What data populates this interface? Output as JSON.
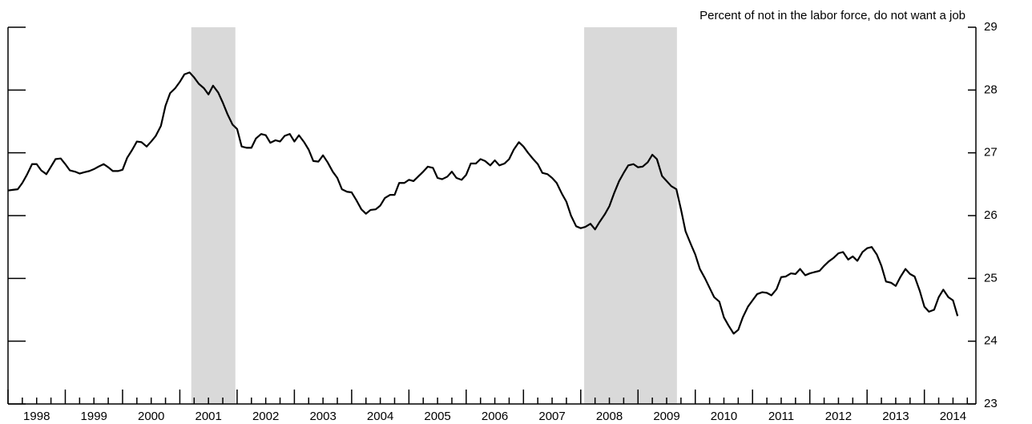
{
  "chart_data": {
    "type": "line",
    "title": "Percent of not in the labor force, do not want a job",
    "x": [
      1998,
      1998.08,
      1998.17,
      1998.25,
      1998.33,
      1998.42,
      1998.5,
      1998.58,
      1998.67,
      1998.75,
      1998.83,
      1998.92,
      1999,
      1999.08,
      1999.17,
      1999.25,
      1999.33,
      1999.42,
      1999.5,
      1999.58,
      1999.67,
      1999.75,
      1999.83,
      1999.92,
      2000,
      2000.08,
      2000.17,
      2000.25,
      2000.33,
      2000.42,
      2000.5,
      2000.58,
      2000.67,
      2000.75,
      2000.83,
      2000.92,
      2001,
      2001.08,
      2001.17,
      2001.25,
      2001.33,
      2001.42,
      2001.5,
      2001.58,
      2001.67,
      2001.75,
      2001.83,
      2001.92,
      2002,
      2002.08,
      2002.17,
      2002.25,
      2002.33,
      2002.42,
      2002.5,
      2002.58,
      2002.67,
      2002.75,
      2002.83,
      2002.92,
      2003,
      2003.08,
      2003.17,
      2003.25,
      2003.33,
      2003.42,
      2003.5,
      2003.58,
      2003.67,
      2003.75,
      2003.83,
      2003.92,
      2004,
      2004.08,
      2004.17,
      2004.25,
      2004.33,
      2004.42,
      2004.5,
      2004.58,
      2004.67,
      2004.75,
      2004.83,
      2004.92,
      2005,
      2005.08,
      2005.17,
      2005.25,
      2005.33,
      2005.42,
      2005.5,
      2005.58,
      2005.67,
      2005.75,
      2005.83,
      2005.92,
      2006,
      2006.08,
      2006.17,
      2006.25,
      2006.33,
      2006.42,
      2006.5,
      2006.58,
      2006.67,
      2006.75,
      2006.83,
      2006.92,
      2007,
      2007.08,
      2007.17,
      2007.25,
      2007.33,
      2007.42,
      2007.5,
      2007.58,
      2007.67,
      2007.75,
      2007.83,
      2007.92,
      2008,
      2008.08,
      2008.17,
      2008.25,
      2008.33,
      2008.42,
      2008.5,
      2008.58,
      2008.67,
      2008.75,
      2008.83,
      2008.92,
      2009,
      2009.08,
      2009.17,
      2009.25,
      2009.33,
      2009.42,
      2009.5,
      2009.58,
      2009.67,
      2009.75,
      2009.83,
      2009.92,
      2010,
      2010.08,
      2010.17,
      2010.25,
      2010.33,
      2010.42,
      2010.5,
      2010.58,
      2010.67,
      2010.75,
      2010.83,
      2010.92,
      2011,
      2011.08,
      2011.17,
      2011.25,
      2011.33,
      2011.42,
      2011.5,
      2011.58,
      2011.67,
      2011.75,
      2011.83,
      2011.92,
      2012,
      2012.08,
      2012.17,
      2012.25,
      2012.33,
      2012.42,
      2012.5,
      2012.58,
      2012.67,
      2012.75,
      2012.83,
      2012.92,
      2013,
      2013.08,
      2013.17,
      2013.25,
      2013.33,
      2013.42,
      2013.5,
      2013.58,
      2013.67,
      2013.75,
      2013.83,
      2013.92,
      2014,
      2014.08,
      2014.17,
      2014.25,
      2014.33,
      2014.42,
      2014.5,
      2014.58
    ],
    "values": [
      26.4,
      26.41,
      26.42,
      26.52,
      26.65,
      26.82,
      26.82,
      26.72,
      26.66,
      26.78,
      26.9,
      26.91,
      26.82,
      26.72,
      26.7,
      26.67,
      26.69,
      26.71,
      26.74,
      26.78,
      26.82,
      26.77,
      26.71,
      26.71,
      26.73,
      26.92,
      27.05,
      27.18,
      27.17,
      27.1,
      27.18,
      27.27,
      27.43,
      27.75,
      27.95,
      28.03,
      28.13,
      28.25,
      28.28,
      28.2,
      28.1,
      28.03,
      27.93,
      28.07,
      27.96,
      27.8,
      27.62,
      27.45,
      27.38,
      27.1,
      27.08,
      27.08,
      27.23,
      27.3,
      27.28,
      27.16,
      27.2,
      27.18,
      27.27,
      27.3,
      27.18,
      27.28,
      27.17,
      27.05,
      26.87,
      26.86,
      26.96,
      26.85,
      26.7,
      26.6,
      26.42,
      26.38,
      26.37,
      26.25,
      26.1,
      26.03,
      26.09,
      26.1,
      26.16,
      26.28,
      26.33,
      26.33,
      26.52,
      26.52,
      26.57,
      26.55,
      26.63,
      26.7,
      26.78,
      26.76,
      26.6,
      26.58,
      26.62,
      26.7,
      26.6,
      26.57,
      26.65,
      26.83,
      26.83,
      26.9,
      26.87,
      26.8,
      26.88,
      26.8,
      26.83,
      26.9,
      27.05,
      27.17,
      27.1,
      27.0,
      26.9,
      26.82,
      26.68,
      26.66,
      26.6,
      26.52,
      26.35,
      26.22,
      26.0,
      25.83,
      25.8,
      25.82,
      25.87,
      25.78,
      25.9,
      26.02,
      26.15,
      26.35,
      26.55,
      26.68,
      26.8,
      26.82,
      26.77,
      26.78,
      26.85,
      26.97,
      26.9,
      26.63,
      26.55,
      26.47,
      26.42,
      26.1,
      25.75,
      25.55,
      25.38,
      25.15,
      25.0,
      24.85,
      24.7,
      24.63,
      24.38,
      24.25,
      24.12,
      24.18,
      24.38,
      24.55,
      24.65,
      24.75,
      24.78,
      24.77,
      24.73,
      24.83,
      25.02,
      25.03,
      25.08,
      25.07,
      25.15,
      25.05,
      25.08,
      25.1,
      25.12,
      25.2,
      25.27,
      25.33,
      25.4,
      25.42,
      25.3,
      25.35,
      25.28,
      25.42,
      25.48,
      25.5,
      25.38,
      25.2,
      24.95,
      24.93,
      24.88,
      25.02,
      25.15,
      25.07,
      25.03,
      24.8,
      24.55,
      24.47,
      24.5,
      24.7,
      24.82,
      24.7,
      24.65,
      24.4
    ],
    "color": "#000000",
    "shaded_periods": [
      [
        2001.2,
        2001.97
      ],
      [
        2008.06,
        2009.68
      ]
    ],
    "shade_color": "#d9d9d9",
    "xlim": [
      1998,
      2014.9
    ],
    "xticks": [
      {
        "value": 1998,
        "label": "1998"
      },
      {
        "value": 1999,
        "label": "1999"
      },
      {
        "value": 2000,
        "label": "2000"
      },
      {
        "value": 2001,
        "label": "2001"
      },
      {
        "value": 2002,
        "label": "2002"
      },
      {
        "value": 2003,
        "label": "2003"
      },
      {
        "value": 2004,
        "label": "2004"
      },
      {
        "value": 2005,
        "label": "2005"
      },
      {
        "value": 2006,
        "label": "2006"
      },
      {
        "value": 2007,
        "label": "2007"
      },
      {
        "value": 2008,
        "label": "2008"
      },
      {
        "value": 2009,
        "label": "2009"
      },
      {
        "value": 2010,
        "label": "2010"
      },
      {
        "value": 2011,
        "label": "2011"
      },
      {
        "value": 2012,
        "label": "2012"
      },
      {
        "value": 2013,
        "label": "2013"
      },
      {
        "value": 2014,
        "label": "2014"
      }
    ],
    "ylim": [
      23,
      29
    ],
    "yticks": [
      23,
      24,
      25,
      26,
      27,
      28,
      29
    ]
  }
}
